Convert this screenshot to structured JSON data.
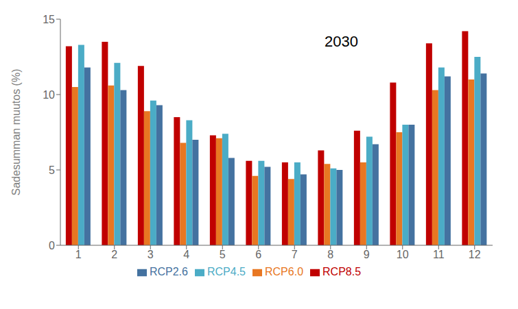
{
  "chart_data": {
    "type": "bar",
    "categories": [
      "1",
      "2",
      "3",
      "4",
      "5",
      "6",
      "7",
      "8",
      "9",
      "10",
      "11",
      "12"
    ],
    "series": [
      {
        "name": "RCP8.5",
        "color": "#C00000",
        "values": [
          13.2,
          13.5,
          11.9,
          8.5,
          7.3,
          5.6,
          5.5,
          6.3,
          7.6,
          10.8,
          13.4,
          14.2
        ]
      },
      {
        "name": "RCP6.0",
        "color": "#E87722",
        "values": [
          10.5,
          10.6,
          8.9,
          6.8,
          7.1,
          4.6,
          4.4,
          5.4,
          5.5,
          7.5,
          10.3,
          11.0
        ]
      },
      {
        "name": "RCP4.5",
        "color": "#4BACC6",
        "values": [
          13.3,
          12.1,
          9.6,
          8.3,
          7.4,
          5.6,
          5.5,
          5.1,
          7.2,
          8.0,
          11.8,
          12.5
        ]
      },
      {
        "name": "RCP2.6",
        "color": "#4472A0",
        "values": [
          11.8,
          10.3,
          9.3,
          7.0,
          5.8,
          5.2,
          4.7,
          5.0,
          6.7,
          8.0,
          11.2,
          11.4
        ]
      }
    ],
    "ylabel": "Sadesumman muutos (%)",
    "ylim": [
      0,
      15
    ],
    "yticks": [
      0,
      5,
      10,
      15
    ],
    "annotation": "2030",
    "grid": false,
    "legend": "bottom"
  }
}
